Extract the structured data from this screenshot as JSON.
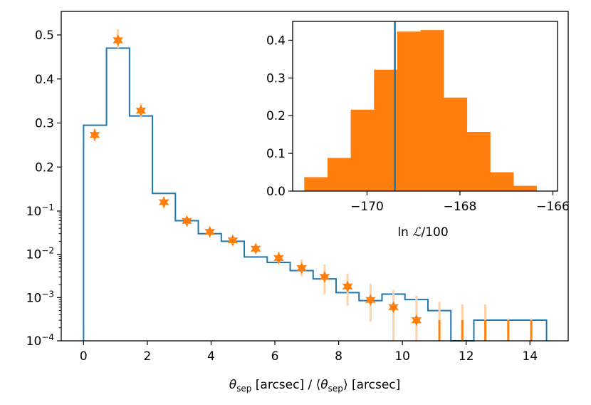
{
  "chart_data": [
    {
      "type": "step",
      "name": "main",
      "xlabel": "θ_sep [arcsec] / ⟨θ_sep⟩ [arcsec]",
      "xlabel_parts": {
        "theta": "θ",
        "sub": "sep",
        "mid": " [arcsec] / ⟨",
        "theta2": "θ",
        "sub2": "sep",
        "end": "⟩ [arcsec]"
      },
      "xlim": [
        -0.7,
        15.2
      ],
      "xticks": [
        0,
        2,
        4,
        6,
        8,
        10,
        12,
        14
      ],
      "yscale": "linear for 0.1–0.5, log below 0.1",
      "ylim": [
        0.0001,
        0.52
      ],
      "yticks_linear": [
        0.2,
        0.3,
        0.4,
        0.5
      ],
      "yticks_linear_labels": [
        "0.2",
        "0.3",
        "0.4",
        "0.5"
      ],
      "yticks_log": [
        {
          "base": "10",
          "exp": "−1",
          "value": 0.1
        },
        {
          "base": "10",
          "exp": "−2",
          "value": 0.01
        },
        {
          "base": "10",
          "exp": "−3",
          "value": 0.001
        },
        {
          "base": "10",
          "exp": "−4",
          "value": 0.0001
        }
      ],
      "step_series": {
        "name": "model histogram",
        "color": "#1f77b4",
        "bin_edges": [
          0,
          0.72,
          1.44,
          2.16,
          2.88,
          3.6,
          4.32,
          5.04,
          5.76,
          6.48,
          7.2,
          7.92,
          8.64,
          9.36,
          10.08,
          10.8,
          11.52,
          12.24,
          12.96,
          13.68,
          14.52
        ],
        "values": [
          0.295,
          0.47,
          0.316,
          0.14,
          0.06,
          0.03,
          0.02,
          0.0087,
          0.0065,
          0.0042,
          0.0027,
          0.0013,
          0.00085,
          0.0012,
          0.0009,
          0.0005,
          0.0001,
          0.0003,
          0.0003,
          0.0003
        ]
      },
      "point_series": {
        "name": "data",
        "color": "#ff7f0e",
        "errbar_color": "#ffd1a6",
        "marker": "star",
        "points": [
          {
            "x": 0.35,
            "y": 0.273,
            "ylo": 0.258,
            "yhi": 0.288
          },
          {
            "x": 1.08,
            "y": 0.488,
            "ylo": 0.47,
            "yhi": 0.513
          },
          {
            "x": 1.8,
            "y": 0.328,
            "ylo": 0.312,
            "yhi": 0.345
          },
          {
            "x": 2.52,
            "y": 0.12,
            "ylo": 0.108,
            "yhi": 0.132
          },
          {
            "x": 3.24,
            "y": 0.059,
            "ylo": 0.053,
            "yhi": 0.066
          },
          {
            "x": 3.96,
            "y": 0.033,
            "ylo": 0.029,
            "yhi": 0.037
          },
          {
            "x": 4.68,
            "y": 0.021,
            "ylo": 0.0185,
            "yhi": 0.024
          },
          {
            "x": 5.4,
            "y": 0.0135,
            "ylo": 0.0115,
            "yhi": 0.016
          },
          {
            "x": 6.12,
            "y": 0.0082,
            "ylo": 0.0058,
            "yhi": 0.0115
          },
          {
            "x": 6.84,
            "y": 0.0048,
            "ylo": 0.0031,
            "yhi": 0.0075
          },
          {
            "x": 7.56,
            "y": 0.003,
            "ylo": 0.0012,
            "yhi": 0.0058
          },
          {
            "x": 8.28,
            "y": 0.0018,
            "ylo": 0.00065,
            "yhi": 0.0036
          },
          {
            "x": 9.0,
            "y": 0.00088,
            "ylo": 0.00028,
            "yhi": 0.0021
          },
          {
            "x": 9.72,
            "y": 0.0006,
            "ylo": 0.0001,
            "yhi": 0.0015
          },
          {
            "x": 10.44,
            "y": 0.0003,
            "ylo": 0.0001,
            "yhi": 0.0011
          },
          {
            "x": 11.16,
            "y": null,
            "ylo": 0.0001,
            "yhi": 0.0008
          },
          {
            "x": 11.88,
            "y": null,
            "ylo": 0.0001,
            "yhi": 0.0007
          },
          {
            "x": 12.6,
            "y": null,
            "ylo": 0.0001,
            "yhi": 0.0007
          },
          {
            "x": 13.32,
            "y": null,
            "ylo": 0.0001,
            "yhi": 0.00033
          },
          {
            "x": 14.04,
            "y": null,
            "ylo": 0.0001,
            "yhi": 0.00033
          }
        ]
      }
    },
    {
      "type": "histogram",
      "name": "inset",
      "xlabel": "ln ℒ/100",
      "xlabel_parts": {
        "ln": "ln ",
        "L": "ℒ",
        "rest": "/100"
      },
      "xlim": [
        -171.6,
        -165.9
      ],
      "xticks": [
        -170,
        -168,
        -166
      ],
      "xtick_labels": [
        "−170",
        "−168",
        "−166"
      ],
      "ylim": [
        0,
        0.45
      ],
      "yticks": [
        0.0,
        0.1,
        0.2,
        0.3,
        0.4
      ],
      "ytick_labels": [
        "0.0",
        "0.1",
        "0.2",
        "0.3",
        "0.4"
      ],
      "bar_color": "#ff7f0e",
      "bin_edges": [
        -171.35,
        -170.85,
        -170.35,
        -169.85,
        -169.35,
        -168.85,
        -168.35,
        -167.85,
        -167.35,
        -166.85,
        -166.35
      ],
      "values": [
        0.037,
        0.088,
        0.216,
        0.322,
        0.423,
        0.427,
        0.248,
        0.157,
        0.05,
        0.014
      ],
      "vline": {
        "x": -169.4,
        "color": "#1f77b4"
      }
    }
  ]
}
